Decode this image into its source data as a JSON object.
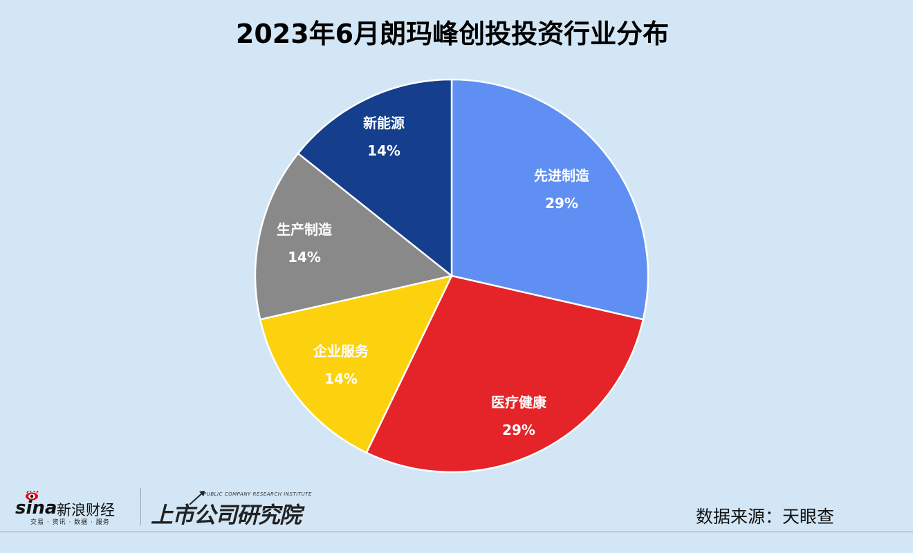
{
  "title": "2023年6月朗玛峰创投投资行业分布",
  "chart_data": {
    "type": "pie",
    "title": "2023年6月朗玛峰创投投资行业分布",
    "start_angle_deg": 0,
    "direction": "clockwise",
    "center": [
      653,
      399
    ],
    "radius": 284,
    "slices": [
      {
        "label": "先进制造",
        "value": 2,
        "percent_label": "29%",
        "color": "#5f8ff2"
      },
      {
        "label": "医疗健康",
        "value": 2,
        "percent_label": "29%",
        "color": "#e42428"
      },
      {
        "label": "企业服务",
        "value": 1,
        "percent_label": "14%",
        "color": "#fcd20e"
      },
      {
        "label": "生产制造",
        "value": 1,
        "percent_label": "14%",
        "color": "#898989"
      },
      {
        "label": "新能源",
        "value": 1,
        "percent_label": "14%",
        "color": "#153f8c"
      }
    ],
    "legend": "none",
    "data_labels": "inside, category name + percent"
  },
  "footer": {
    "source": "数据来源：天眼查",
    "sina_logo": {
      "word": "sina",
      "name": "新浪财经",
      "tagline": "交易 · 资讯 · 数据 · 服务"
    },
    "institute_logo": {
      "english": "PUBLIC COMPANY RESEARCH INSTITUTE",
      "name": "上市公司研究院"
    }
  }
}
